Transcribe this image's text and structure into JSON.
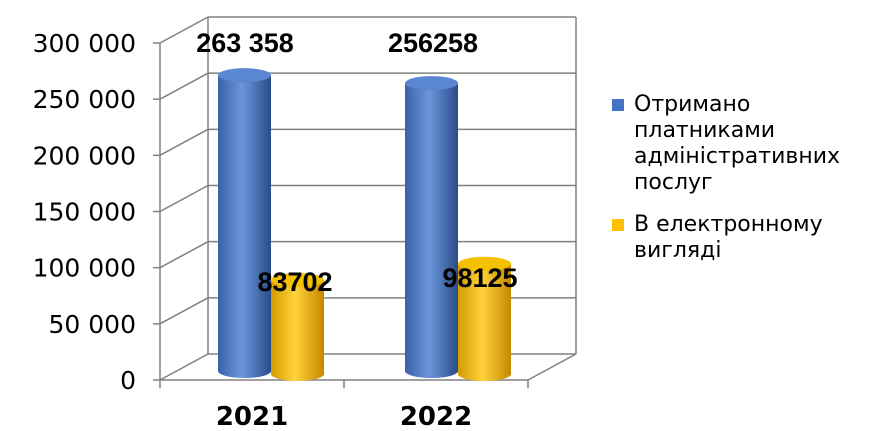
{
  "chart_data": {
    "type": "bar",
    "categories": [
      "2021",
      "2022"
    ],
    "series": [
      {
        "name": "Отримано платниками адміністративних послуг",
        "values": [
          263358,
          256258
        ],
        "labels": [
          "263 358",
          "256258"
        ],
        "color": "#4472c4"
      },
      {
        "name": "В електронному вигляді",
        "values": [
          83702,
          98125
        ],
        "labels": [
          "83702",
          "98125"
        ],
        "color": "#ffc000"
      }
    ],
    "ylim": [
      0,
      300000
    ],
    "yticks": [
      0,
      50000,
      100000,
      150000,
      200000,
      250000,
      300000
    ],
    "ytick_labels": [
      "0",
      "50 000",
      "100 000",
      "150 000",
      "200 000",
      "250 000",
      "300 000"
    ],
    "grid": true,
    "legend": "right",
    "style": "3d-cylinder"
  }
}
